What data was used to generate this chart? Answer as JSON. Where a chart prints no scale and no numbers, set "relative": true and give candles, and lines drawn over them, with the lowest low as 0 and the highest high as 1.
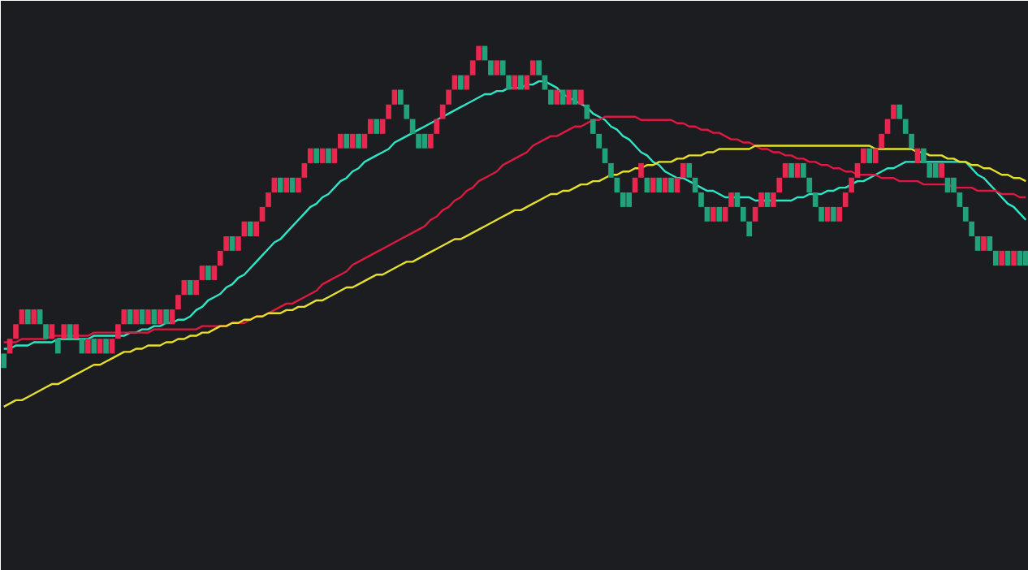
{
  "chart_data": {
    "type": "candlestick",
    "relative": true,
    "tick_labels": false,
    "colors": [
      "#22a27a",
      "#e8264e",
      "#e8264e",
      "#e8264e",
      "#22a27a",
      "#e8264e",
      "#22a27a",
      "#22a27a",
      "#e8264e",
      "#22a27a",
      "#e8264e",
      "#22a27a",
      "#e8264e",
      "#22a27a",
      "#e8264e",
      "#22a27a",
      "#e8264e",
      "#22a27a",
      "#e8264e",
      "#e8264e",
      "#e8264e",
      "#22a27a",
      "#e8264e",
      "#22a27a",
      "#e8264e",
      "#22a27a",
      "#e8264e",
      "#22a27a",
      "#e8264e",
      "#e8264e",
      "#e8264e",
      "#22a27a",
      "#e8264e",
      "#e8264e",
      "#22a27a",
      "#e8264e",
      "#e8264e",
      "#e8264e",
      "#22a27a",
      "#e8264e",
      "#e8264e",
      "#22a27a",
      "#e8264e",
      "#e8264e",
      "#e8264e",
      "#e8264e",
      "#22a27a",
      "#e8264e",
      "#22a27a",
      "#e8264e",
      "#e8264e",
      "#e8264e",
      "#22a27a",
      "#e8264e",
      "#22a27a",
      "#e8264e",
      "#e8264e",
      "#22a27a",
      "#e8264e",
      "#22a27a",
      "#e8264e",
      "#e8264e",
      "#22a27a",
      "#e8264e",
      "#e8264e",
      "#e8264e",
      "#22a27a",
      "#22a27a",
      "#22a27a",
      "#22a27a",
      "#22a27a",
      "#e8264e",
      "#e8264e",
      "#e8264e",
      "#e8264e",
      "#e8264e",
      "#22a27a",
      "#e8264e",
      "#e8264e",
      "#e8264e",
      "#22a27a",
      "#22a27a",
      "#e8264e",
      "#22a27a",
      "#22a27a",
      "#e8264e",
      "#22a27a",
      "#e8264e",
      "#e8264e",
      "#22a27a",
      "#22a27a",
      "#22a27a",
      "#e8264e",
      "#22a27a",
      "#e8264e",
      "#22a27a",
      "#e8264e",
      "#22a27a",
      "#22a27a",
      "#22a27a",
      "#22a27a",
      "#22a27a",
      "#22a27a",
      "#22a27a",
      "#22a27a",
      "#e8264e",
      "#e8264e",
      "#22a27a",
      "#e8264e",
      "#22a27a",
      "#e8264e",
      "#22a27a",
      "#e8264e",
      "#e8264e",
      "#22a27a",
      "#22a27a",
      "#22a27a",
      "#22a27a",
      "#e8264e",
      "#22a27a",
      "#e8264e",
      "#e8264e",
      "#22a27a",
      "#22a27a",
      "#22a27a",
      "#e8264e",
      "#e8264e",
      "#22a27a",
      "#e8264e",
      "#e8264e",
      "#e8264e",
      "#22a27a",
      "#e8264e",
      "#22a27a",
      "#22a27a",
      "#22a27a",
      "#22a27a",
      "#e8264e",
      "#22a27a",
      "#e8264e",
      "#e8264e",
      "#e8264e",
      "#e8264e",
      "#e8264e",
      "#22a27a",
      "#e8264e",
      "#e8264e",
      "#e8264e",
      "#e8264e",
      "#22a27a",
      "#22a27a",
      "#22a27a",
      "#e8264e",
      "#22a27a",
      "#22a27a",
      "#22a27a",
      "#e8264e",
      "#22a27a",
      "#22a27a",
      "#22a27a",
      "#22a27a",
      "#22a27a",
      "#22a27a",
      "#e8264e",
      "#22a27a",
      "#22a27a",
      "#e8264e",
      "#22a27a",
      "#e8264e",
      "#22a27a",
      "#22a27a"
    ],
    "categories": [
      null,
      null,
      null,
      null,
      null,
      null,
      null,
      null,
      null,
      null,
      null,
      null,
      null,
      null,
      null,
      null,
      null,
      null,
      null,
      null,
      null,
      null,
      null,
      null,
      null,
      null,
      null,
      null,
      null,
      null,
      null,
      null,
      null,
      null,
      null,
      null,
      null,
      null,
      null,
      null,
      null,
      null,
      null,
      null,
      null,
      null,
      null,
      null,
      null,
      null,
      null,
      null,
      null,
      null,
      null,
      null,
      null,
      null,
      null,
      null,
      null,
      null,
      null,
      null,
      null,
      null,
      null,
      null,
      null,
      null,
      null,
      null,
      null,
      null,
      null,
      null,
      null,
      null,
      null,
      null,
      null,
      null,
      null,
      null,
      null,
      null,
      null,
      null,
      null,
      null,
      null,
      null,
      null,
      null,
      null,
      null,
      null,
      null,
      null,
      null,
      null,
      null,
      null,
      null,
      null,
      null,
      null,
      null,
      null,
      null,
      null,
      null,
      null,
      null,
      null,
      null,
      null,
      null,
      null,
      null,
      null,
      null,
      null,
      null,
      null,
      null,
      null,
      null,
      null,
      null,
      null,
      null,
      null,
      null,
      null,
      null,
      null,
      null,
      null,
      null,
      null,
      null,
      null,
      null,
      null,
      null,
      null,
      null,
      null,
      null,
      null,
      null,
      null,
      null,
      null,
      null,
      null,
      null,
      null,
      null,
      null,
      null,
      null,
      null,
      null,
      null,
      null,
      null,
      null,
      null,
      null
    ],
    "ohlc": [
      [
        0.045,
        0.045,
        0,
        0
      ],
      [
        0.045,
        0.091,
        0.045,
        0.091
      ],
      [
        0.091,
        0.136,
        0.091,
        0.136
      ],
      [
        0.136,
        0.182,
        0.136,
        0.182
      ],
      [
        0.182,
        0.182,
        0.136,
        0.136
      ],
      [
        0.136,
        0.182,
        0.136,
        0.182
      ],
      [
        0.182,
        0.182,
        0.136,
        0.136
      ],
      [
        0.136,
        0.136,
        0.091,
        0.091
      ],
      [
        0.091,
        0.136,
        0.091,
        0.136
      ],
      [
        0.091,
        0.091,
        0.045,
        0.045
      ],
      [
        0.091,
        0.136,
        0.091,
        0.136
      ],
      [
        0.136,
        0.136,
        0.091,
        0.091
      ],
      [
        0.091,
        0.136,
        0.091,
        0.136
      ],
      [
        0.091,
        0.091,
        0.045,
        0.045
      ],
      [
        0.045,
        0.091,
        0.045,
        0.091
      ],
      [
        0.091,
        0.091,
        0.045,
        0.045
      ],
      [
        0.045,
        0.091,
        0.045,
        0.091
      ],
      [
        0.091,
        0.091,
        0.045,
        0.045
      ],
      [
        0.045,
        0.091,
        0.045,
        0.091
      ],
      [
        0.091,
        0.136,
        0.091,
        0.136
      ],
      [
        0.136,
        0.182,
        0.136,
        0.182
      ],
      [
        0.182,
        0.182,
        0.136,
        0.136
      ],
      [
        0.136,
        0.182,
        0.136,
        0.182
      ],
      [
        0.182,
        0.182,
        0.136,
        0.136
      ],
      [
        0.136,
        0.182,
        0.136,
        0.182
      ],
      [
        0.182,
        0.182,
        0.136,
        0.136
      ],
      [
        0.136,
        0.182,
        0.136,
        0.182
      ],
      [
        0.182,
        0.182,
        0.136,
        0.136
      ],
      [
        0.136,
        0.182,
        0.136,
        0.182
      ],
      [
        0.182,
        0.227,
        0.182,
        0.227
      ],
      [
        0.227,
        0.273,
        0.227,
        0.273
      ],
      [
        0.273,
        0.273,
        0.227,
        0.227
      ],
      [
        0.227,
        0.273,
        0.227,
        0.273
      ],
      [
        0.273,
        0.318,
        0.273,
        0.318
      ],
      [
        0.318,
        0.318,
        0.273,
        0.273
      ],
      [
        0.273,
        0.318,
        0.273,
        0.318
      ],
      [
        0.318,
        0.364,
        0.318,
        0.364
      ],
      [
        0.364,
        0.409,
        0.364,
        0.409
      ],
      [
        0.409,
        0.409,
        0.364,
        0.364
      ],
      [
        0.364,
        0.409,
        0.364,
        0.409
      ],
      [
        0.409,
        0.455,
        0.409,
        0.455
      ],
      [
        0.455,
        0.455,
        0.409,
        0.409
      ],
      [
        0.409,
        0.455,
        0.409,
        0.455
      ],
      [
        0.455,
        0.5,
        0.455,
        0.5
      ],
      [
        0.5,
        0.545,
        0.5,
        0.545
      ],
      [
        0.545,
        0.591,
        0.545,
        0.591
      ],
      [
        0.591,
        0.591,
        0.545,
        0.545
      ],
      [
        0.545,
        0.591,
        0.545,
        0.591
      ],
      [
        0.591,
        0.591,
        0.545,
        0.545
      ],
      [
        0.545,
        0.591,
        0.545,
        0.591
      ],
      [
        0.591,
        0.636,
        0.591,
        0.636
      ],
      [
        0.636,
        0.682,
        0.636,
        0.682
      ],
      [
        0.682,
        0.682,
        0.636,
        0.636
      ],
      [
        0.636,
        0.682,
        0.636,
        0.682
      ],
      [
        0.682,
        0.682,
        0.636,
        0.636
      ],
      [
        0.636,
        0.682,
        0.636,
        0.682
      ],
      [
        0.682,
        0.727,
        0.682,
        0.727
      ],
      [
        0.727,
        0.727,
        0.682,
        0.682
      ],
      [
        0.682,
        0.727,
        0.682,
        0.727
      ],
      [
        0.727,
        0.727,
        0.682,
        0.682
      ],
      [
        0.682,
        0.727,
        0.682,
        0.727
      ],
      [
        0.727,
        0.773,
        0.727,
        0.773
      ],
      [
        0.773,
        0.773,
        0.727,
        0.727
      ],
      [
        0.727,
        0.773,
        0.727,
        0.773
      ],
      [
        0.773,
        0.818,
        0.773,
        0.818
      ],
      [
        0.818,
        0.864,
        0.818,
        0.864
      ],
      [
        0.864,
        0.864,
        0.818,
        0.818
      ],
      [
        0.818,
        0.818,
        0.773,
        0.773
      ],
      [
        0.773,
        0.773,
        0.727,
        0.727
      ],
      [
        0.727,
        0.727,
        0.682,
        0.682
      ],
      [
        0.727,
        0.727,
        0.682,
        0.682
      ],
      [
        0.682,
        0.727,
        0.682,
        0.727
      ],
      [
        0.727,
        0.773,
        0.727,
        0.773
      ],
      [
        0.773,
        0.818,
        0.773,
        0.818
      ],
      [
        0.818,
        0.864,
        0.818,
        0.864
      ],
      [
        0.864,
        0.909,
        0.864,
        0.909
      ],
      [
        0.909,
        0.909,
        0.864,
        0.864
      ],
      [
        0.864,
        0.909,
        0.864,
        0.909
      ],
      [
        0.909,
        0.955,
        0.909,
        0.955
      ],
      [
        0.955,
        1,
        0.955,
        1
      ],
      [
        1,
        1,
        0.955,
        0.955
      ],
      [
        0.955,
        0.955,
        0.909,
        0.909
      ],
      [
        0.909,
        0.955,
        0.909,
        0.955
      ],
      [
        0.955,
        0.955,
        0.909,
        0.909
      ],
      [
        0.909,
        0.909,
        0.864,
        0.864
      ],
      [
        0.864,
        0.909,
        0.864,
        0.909
      ],
      [
        0.909,
        0.909,
        0.864,
        0.864
      ],
      [
        0.864,
        0.909,
        0.864,
        0.909
      ],
      [
        0.909,
        0.955,
        0.909,
        0.955
      ],
      [
        0.955,
        0.955,
        0.909,
        0.909
      ],
      [
        0.909,
        0.909,
        0.864,
        0.864
      ],
      [
        0.864,
        0.864,
        0.818,
        0.818
      ],
      [
        0.818,
        0.864,
        0.818,
        0.864
      ],
      [
        0.864,
        0.864,
        0.818,
        0.818
      ],
      [
        0.818,
        0.864,
        0.818,
        0.864
      ],
      [
        0.864,
        0.864,
        0.818,
        0.818
      ],
      [
        0.818,
        0.864,
        0.818,
        0.864
      ],
      [
        0.818,
        0.818,
        0.773,
        0.773
      ],
      [
        0.773,
        0.773,
        0.727,
        0.727
      ],
      [
        0.727,
        0.727,
        0.682,
        0.682
      ],
      [
        0.682,
        0.682,
        0.636,
        0.636
      ],
      [
        0.636,
        0.636,
        0.591,
        0.591
      ],
      [
        0.591,
        0.591,
        0.545,
        0.545
      ],
      [
        0.545,
        0.545,
        0.5,
        0.5
      ],
      [
        0.545,
        0.545,
        0.5,
        0.5
      ],
      [
        0.545,
        0.591,
        0.545,
        0.591
      ],
      [
        0.591,
        0.636,
        0.591,
        0.636
      ],
      [
        0.591,
        0.591,
        0.545,
        0.545
      ],
      [
        0.545,
        0.591,
        0.545,
        0.591
      ],
      [
        0.591,
        0.591,
        0.545,
        0.545
      ],
      [
        0.545,
        0.591,
        0.545,
        0.591
      ],
      [
        0.591,
        0.591,
        0.545,
        0.545
      ],
      [
        0.545,
        0.591,
        0.545,
        0.591
      ],
      [
        0.591,
        0.636,
        0.591,
        0.636
      ],
      [
        0.636,
        0.636,
        0.591,
        0.591
      ],
      [
        0.591,
        0.591,
        0.545,
        0.545
      ],
      [
        0.545,
        0.545,
        0.5,
        0.5
      ],
      [
        0.5,
        0.5,
        0.455,
        0.455
      ],
      [
        0.455,
        0.5,
        0.455,
        0.5
      ],
      [
        0.5,
        0.5,
        0.455,
        0.455
      ],
      [
        0.455,
        0.5,
        0.455,
        0.5
      ],
      [
        0.5,
        0.545,
        0.5,
        0.545
      ],
      [
        0.545,
        0.545,
        0.5,
        0.5
      ],
      [
        0.5,
        0.5,
        0.455,
        0.455
      ],
      [
        0.455,
        0.455,
        0.409,
        0.409
      ],
      [
        0.455,
        0.5,
        0.455,
        0.5
      ],
      [
        0.5,
        0.545,
        0.5,
        0.545
      ],
      [
        0.545,
        0.545,
        0.5,
        0.5
      ],
      [
        0.5,
        0.545,
        0.5,
        0.545
      ],
      [
        0.545,
        0.591,
        0.545,
        0.591
      ],
      [
        0.591,
        0.636,
        0.591,
        0.636
      ],
      [
        0.636,
        0.636,
        0.591,
        0.591
      ],
      [
        0.591,
        0.636,
        0.591,
        0.636
      ],
      [
        0.636,
        0.636,
        0.591,
        0.591
      ],
      [
        0.591,
        0.591,
        0.545,
        0.545
      ],
      [
        0.545,
        0.545,
        0.5,
        0.5
      ],
      [
        0.5,
        0.5,
        0.455,
        0.455
      ],
      [
        0.455,
        0.5,
        0.455,
        0.5
      ],
      [
        0.5,
        0.5,
        0.455,
        0.455
      ],
      [
        0.455,
        0.5,
        0.455,
        0.5
      ],
      [
        0.5,
        0.545,
        0.5,
        0.545
      ],
      [
        0.545,
        0.591,
        0.545,
        0.591
      ],
      [
        0.591,
        0.636,
        0.591,
        0.636
      ],
      [
        0.636,
        0.682,
        0.636,
        0.682
      ],
      [
        0.682,
        0.682,
        0.636,
        0.636
      ],
      [
        0.636,
        0.682,
        0.636,
        0.682
      ],
      [
        0.682,
        0.727,
        0.682,
        0.727
      ],
      [
        0.727,
        0.773,
        0.727,
        0.773
      ],
      [
        0.773,
        0.818,
        0.773,
        0.818
      ],
      [
        0.818,
        0.818,
        0.773,
        0.773
      ],
      [
        0.773,
        0.773,
        0.727,
        0.727
      ],
      [
        0.727,
        0.727,
        0.682,
        0.682
      ],
      [
        0.636,
        0.682,
        0.636,
        0.682
      ],
      [
        0.682,
        0.682,
        0.636,
        0.636
      ],
      [
        0.636,
        0.636,
        0.591,
        0.591
      ],
      [
        0.636,
        0.636,
        0.591,
        0.591
      ],
      [
        0.591,
        0.636,
        0.591,
        0.636
      ],
      [
        0.591,
        0.591,
        0.545,
        0.545
      ],
      [
        0.591,
        0.591,
        0.545,
        0.545
      ],
      [
        0.545,
        0.545,
        0.5,
        0.5
      ],
      [
        0.5,
        0.5,
        0.455,
        0.455
      ],
      [
        0.455,
        0.455,
        0.409,
        0.409
      ],
      [
        0.409,
        0.409,
        0.364,
        0.364
      ],
      [
        0.364,
        0.409,
        0.364,
        0.409
      ],
      [
        0.409,
        0.409,
        0.364,
        0.364
      ],
      [
        0.364,
        0.364,
        0.318,
        0.318
      ],
      [
        0.318,
        0.364,
        0.318,
        0.364
      ],
      [
        0.364,
        0.364,
        0.318,
        0.318
      ],
      [
        0.318,
        0.364,
        0.318,
        0.364
      ],
      [
        0.364,
        0.364,
        0.318,
        0.318
      ],
      [
        0.364,
        0.364,
        0.318,
        0.318
      ]
    ],
    "series": [
      {
        "type": "line",
        "color": "#2ee6c6",
        "values": [
          0.06,
          0.06,
          0.07,
          0.07,
          0.07,
          0.08,
          0.08,
          0.08,
          0.08,
          0.09,
          0.09,
          0.09,
          0.09,
          0.09,
          0.09,
          0.1,
          0.1,
          0.1,
          0.1,
          0.1,
          0.1,
          0.11,
          0.11,
          0.12,
          0.12,
          0.13,
          0.13,
          0.14,
          0.14,
          0.15,
          0.15,
          0.16,
          0.18,
          0.19,
          0.21,
          0.22,
          0.23,
          0.25,
          0.26,
          0.28,
          0.29,
          0.31,
          0.33,
          0.35,
          0.37,
          0.39,
          0.4,
          0.42,
          0.44,
          0.46,
          0.48,
          0.5,
          0.51,
          0.53,
          0.54,
          0.56,
          0.58,
          0.59,
          0.61,
          0.62,
          0.64,
          0.65,
          0.66,
          0.67,
          0.68,
          0.7,
          0.71,
          0.72,
          0.73,
          0.74,
          0.75,
          0.76,
          0.77,
          0.78,
          0.79,
          0.8,
          0.81,
          0.82,
          0.83,
          0.84,
          0.85,
          0.85,
          0.86,
          0.86,
          0.87,
          0.87,
          0.87,
          0.88,
          0.88,
          0.89,
          0.89,
          0.88,
          0.87,
          0.85,
          0.84,
          0.83,
          0.82,
          0.81,
          0.79,
          0.78,
          0.77,
          0.75,
          0.74,
          0.72,
          0.71,
          0.69,
          0.67,
          0.66,
          0.64,
          0.63,
          0.61,
          0.6,
          0.59,
          0.59,
          0.58,
          0.57,
          0.56,
          0.55,
          0.55,
          0.54,
          0.53,
          0.53,
          0.53,
          0.53,
          0.53,
          0.52,
          0.52,
          0.52,
          0.52,
          0.52,
          0.52,
          0.52,
          0.53,
          0.53,
          0.54,
          0.54,
          0.54,
          0.55,
          0.55,
          0.56,
          0.56,
          0.57,
          0.58,
          0.58,
          0.59,
          0.6,
          0.61,
          0.62,
          0.62,
          0.63,
          0.64,
          0.64,
          0.64,
          0.64,
          0.64,
          0.64,
          0.64,
          0.64,
          0.64,
          0.64,
          0.64,
          0.62,
          0.6,
          0.59,
          0.57,
          0.55,
          0.53,
          0.51,
          0.5,
          0.48,
          0.46
        ]
      },
      {
        "type": "line",
        "color": "#dc1a40",
        "values": [
          0.08,
          0.08,
          0.08,
          0.09,
          0.09,
          0.09,
          0.09,
          0.09,
          0.1,
          0.1,
          0.1,
          0.1,
          0.1,
          0.1,
          0.1,
          0.11,
          0.11,
          0.11,
          0.11,
          0.11,
          0.11,
          0.11,
          0.11,
          0.11,
          0.11,
          0.12,
          0.12,
          0.12,
          0.12,
          0.12,
          0.12,
          0.12,
          0.12,
          0.13,
          0.13,
          0.13,
          0.13,
          0.13,
          0.14,
          0.14,
          0.14,
          0.15,
          0.16,
          0.16,
          0.17,
          0.18,
          0.19,
          0.2,
          0.2,
          0.21,
          0.22,
          0.23,
          0.24,
          0.26,
          0.27,
          0.28,
          0.29,
          0.3,
          0.32,
          0.33,
          0.34,
          0.35,
          0.36,
          0.37,
          0.38,
          0.39,
          0.4,
          0.41,
          0.42,
          0.43,
          0.44,
          0.46,
          0.47,
          0.49,
          0.5,
          0.52,
          0.53,
          0.55,
          0.56,
          0.58,
          0.59,
          0.6,
          0.61,
          0.63,
          0.64,
          0.65,
          0.66,
          0.67,
          0.69,
          0.7,
          0.71,
          0.72,
          0.72,
          0.73,
          0.74,
          0.75,
          0.75,
          0.76,
          0.77,
          0.77,
          0.78,
          0.78,
          0.78,
          0.78,
          0.78,
          0.78,
          0.77,
          0.77,
          0.77,
          0.77,
          0.77,
          0.77,
          0.76,
          0.76,
          0.75,
          0.75,
          0.74,
          0.74,
          0.73,
          0.73,
          0.72,
          0.71,
          0.71,
          0.7,
          0.7,
          0.69,
          0.68,
          0.68,
          0.67,
          0.67,
          0.66,
          0.66,
          0.65,
          0.65,
          0.64,
          0.64,
          0.63,
          0.63,
          0.62,
          0.62,
          0.61,
          0.61,
          0.6,
          0.6,
          0.6,
          0.6,
          0.59,
          0.59,
          0.59,
          0.58,
          0.58,
          0.58,
          0.58,
          0.57,
          0.57,
          0.57,
          0.57,
          0.57,
          0.56,
          0.56,
          0.56,
          0.56,
          0.55,
          0.55,
          0.55,
          0.55,
          0.54,
          0.54,
          0.54,
          0.53,
          0.53
        ]
      },
      {
        "type": "line",
        "color": "#e6df2e",
        "values": [
          -0.12,
          -0.11,
          -0.1,
          -0.1,
          -0.09,
          -0.08,
          -0.07,
          -0.06,
          -0.05,
          -0.05,
          -0.04,
          -0.03,
          -0.02,
          -0.01,
          0.0,
          0.01,
          0.01,
          0.02,
          0.03,
          0.04,
          0.05,
          0.05,
          0.06,
          0.06,
          0.07,
          0.07,
          0.07,
          0.08,
          0.08,
          0.09,
          0.09,
          0.1,
          0.1,
          0.11,
          0.11,
          0.12,
          0.13,
          0.13,
          0.14,
          0.14,
          0.15,
          0.15,
          0.16,
          0.16,
          0.17,
          0.17,
          0.17,
          0.18,
          0.18,
          0.19,
          0.19,
          0.2,
          0.21,
          0.21,
          0.22,
          0.23,
          0.24,
          0.25,
          0.25,
          0.26,
          0.27,
          0.28,
          0.29,
          0.29,
          0.3,
          0.31,
          0.32,
          0.33,
          0.33,
          0.34,
          0.35,
          0.36,
          0.37,
          0.38,
          0.39,
          0.4,
          0.4,
          0.41,
          0.42,
          0.43,
          0.44,
          0.45,
          0.46,
          0.47,
          0.48,
          0.49,
          0.49,
          0.5,
          0.51,
          0.52,
          0.53,
          0.54,
          0.54,
          0.55,
          0.55,
          0.56,
          0.57,
          0.57,
          0.58,
          0.58,
          0.59,
          0.6,
          0.6,
          0.61,
          0.61,
          0.62,
          0.62,
          0.63,
          0.63,
          0.64,
          0.64,
          0.64,
          0.65,
          0.65,
          0.66,
          0.66,
          0.66,
          0.67,
          0.67,
          0.68,
          0.68,
          0.68,
          0.68,
          0.68,
          0.68,
          0.69,
          0.69,
          0.69,
          0.69,
          0.69,
          0.69,
          0.69,
          0.69,
          0.69,
          0.69,
          0.69,
          0.69,
          0.69,
          0.69,
          0.69,
          0.69,
          0.69,
          0.69,
          0.69,
          0.69,
          0.68,
          0.68,
          0.68,
          0.68,
          0.68,
          0.68,
          0.68,
          0.67,
          0.67,
          0.66,
          0.66,
          0.66,
          0.65,
          0.65,
          0.64,
          0.64,
          0.63,
          0.63,
          0.62,
          0.62,
          0.61,
          0.6,
          0.6,
          0.59,
          0.59,
          0.58
        ]
      }
    ]
  }
}
